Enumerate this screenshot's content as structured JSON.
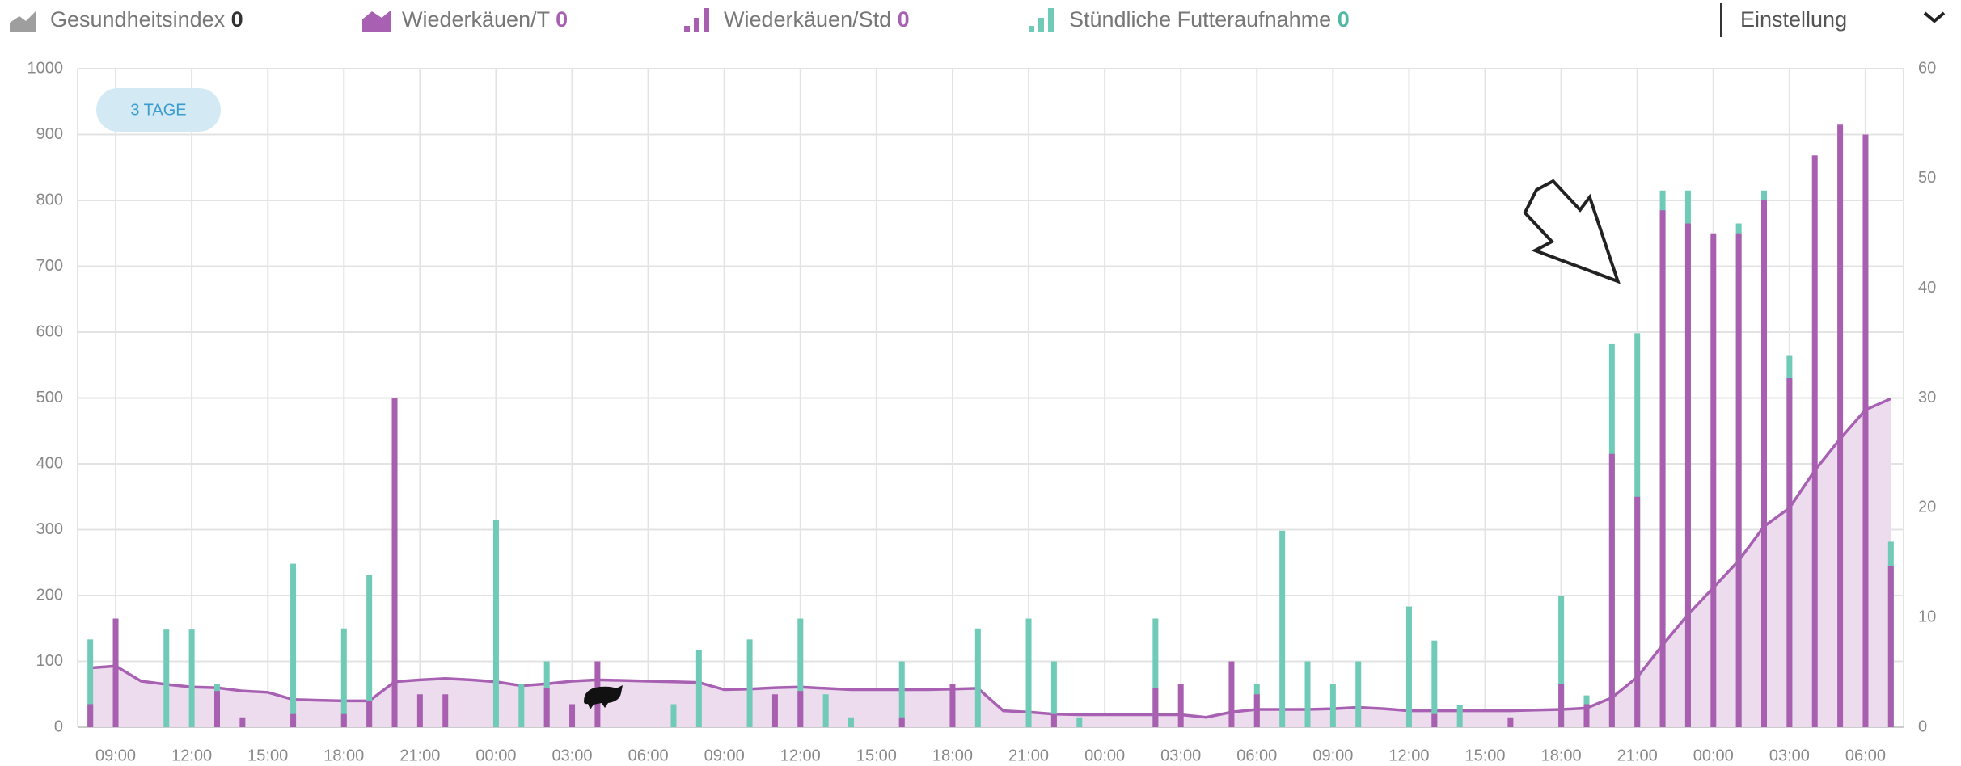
{
  "chart_data": {
    "type": "bar",
    "health_index": {
      "name": "Gesundheitsindex",
      "count": 0,
      "color": "#9e9e9e"
    },
    "settings": "Einstellung",
    "range_button": "3 TAGE",
    "categories": [
      null,
      "09:00",
      null,
      null,
      "12:00",
      null,
      null,
      "15:00",
      null,
      null,
      "18:00",
      null,
      null,
      "21:00",
      null,
      null,
      "00:00",
      null,
      null,
      "03:00",
      null,
      null,
      "06:00",
      null,
      null,
      "09:00",
      null,
      null,
      "12:00",
      null,
      null,
      "15:00",
      null,
      null,
      "18:00",
      null,
      null,
      "21:00",
      null,
      null,
      "00:00",
      null,
      null,
      "03:00",
      null,
      null,
      "06:00",
      null,
      null,
      "09:00",
      null,
      null,
      "12:00",
      null,
      null,
      "15:00",
      null,
      null,
      "18:00",
      null,
      null,
      "21:00",
      null,
      null,
      "00:00",
      null,
      null,
      "03:00",
      null,
      null,
      "06:00",
      null
    ],
    "series": [
      {
        "name": "Wiederkäuen/T",
        "type": "area",
        "axis": "y",
        "count": 0,
        "color": "#a860b2",
        "fill": "#ecdcee",
        "values": [
          90,
          93,
          70,
          65,
          61,
          60,
          55,
          53,
          42,
          41,
          40,
          40,
          69,
          72,
          74,
          72,
          69,
          63,
          66,
          70,
          72,
          71,
          70,
          69,
          68,
          57,
          58,
          60,
          61,
          59,
          57,
          57,
          57,
          57,
          58,
          59,
          25,
          23,
          20,
          19,
          19,
          19,
          19,
          19,
          15,
          23,
          27,
          27,
          27,
          28,
          30,
          28,
          25,
          25,
          25,
          25,
          25,
          26,
          27,
          29,
          45,
          76,
          125,
          171,
          212,
          253,
          305,
          333,
          390,
          438,
          482,
          499
        ]
      },
      {
        "name": "Wiederkäuen/Std",
        "type": "bar",
        "axis": "y2",
        "count": 0,
        "color": "#a85fb0",
        "values": [
          2.1,
          9.9,
          0,
          0,
          0,
          3.3,
          0.9,
          0,
          1.2,
          0,
          1.2,
          2.4,
          30,
          3,
          3,
          0,
          0,
          0,
          3.6,
          2.1,
          6,
          0,
          0,
          0,
          0,
          0,
          0,
          3,
          3.3,
          0,
          0,
          0,
          0.9,
          0,
          3.9,
          0,
          0,
          0,
          1.2,
          0,
          0,
          0,
          3.6,
          3.9,
          0,
          6,
          3,
          0,
          0,
          0,
          0,
          0,
          0,
          1.2,
          0,
          0,
          0.9,
          0,
          3.9,
          2.1,
          24.9,
          21,
          47.1,
          45.9,
          45,
          45,
          48,
          31.8,
          52.1,
          54.9,
          54,
          14.7
        ]
      },
      {
        "name": "Stündliche Futteraufnahme",
        "type": "bar",
        "axis": "y2",
        "count": 0,
        "color": "#6fcbb8",
        "values": [
          8,
          0,
          0,
          8.9,
          8.9,
          3.9,
          0,
          0,
          14.9,
          0,
          9,
          13.9,
          0,
          0,
          0,
          0,
          18.9,
          3.9,
          6,
          0,
          0,
          0,
          0,
          2.1,
          7,
          0,
          8,
          0,
          9.9,
          3,
          0.9,
          0,
          6,
          0,
          3.6,
          9,
          0,
          9.9,
          6,
          0.9,
          0,
          0,
          9.9,
          0,
          0,
          0,
          3.9,
          17.9,
          6,
          3.9,
          6,
          0,
          11,
          7.9,
          2,
          0,
          0,
          0,
          12,
          2.9,
          34.9,
          35.9,
          48.9,
          48.9,
          0,
          45.9,
          48.9,
          33.9,
          0,
          0,
          0,
          16.9
        ]
      }
    ],
    "ylim": [
      0,
      1000
    ],
    "yticks": [
      0,
      100,
      200,
      300,
      400,
      500,
      600,
      700,
      800,
      900,
      1000
    ],
    "y2lim": [
      0,
      60
    ],
    "y2ticks": [
      0,
      10,
      20,
      30,
      40,
      50,
      60
    ],
    "grid": true
  }
}
